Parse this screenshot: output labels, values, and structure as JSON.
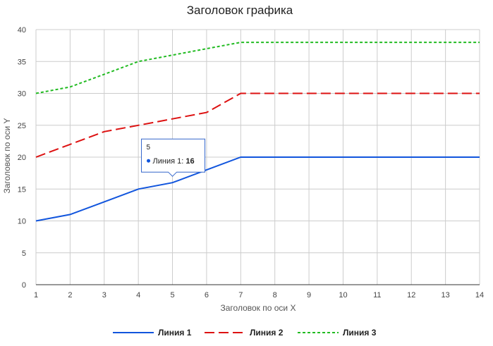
{
  "chart_data": {
    "type": "line",
    "title": "Заголовок графика",
    "xlabel": "Заголовок по оси X",
    "ylabel": "Заголовок по оси Y",
    "x": [
      1,
      2,
      3,
      4,
      5,
      6,
      7,
      8,
      9,
      10,
      11,
      12,
      13,
      14
    ],
    "xlim": [
      1,
      14
    ],
    "ylim": [
      0,
      40
    ],
    "yticks": [
      0,
      5,
      10,
      15,
      20,
      25,
      30,
      35,
      40
    ],
    "grid": true,
    "legend_position": "bottom",
    "series": [
      {
        "name": "Линия 1",
        "color": "#1155dd",
        "style": "solid",
        "values": [
          10,
          11,
          13,
          15,
          16,
          18,
          20,
          20,
          20,
          20,
          20,
          20,
          20,
          20
        ]
      },
      {
        "name": "Линия 2",
        "color": "#dd1111",
        "style": "dashed",
        "values": [
          20,
          22,
          24,
          25,
          26,
          27,
          30,
          30,
          30,
          30,
          30,
          30,
          30,
          30
        ]
      },
      {
        "name": "Линия 3",
        "color": "#22bb22",
        "style": "dotted",
        "values": [
          30,
          31,
          33,
          35,
          36,
          37,
          38,
          38,
          38,
          38,
          38,
          38,
          38,
          38
        ]
      }
    ],
    "tooltip": {
      "x": "5",
      "series": "Линия 1",
      "value": "16"
    }
  }
}
